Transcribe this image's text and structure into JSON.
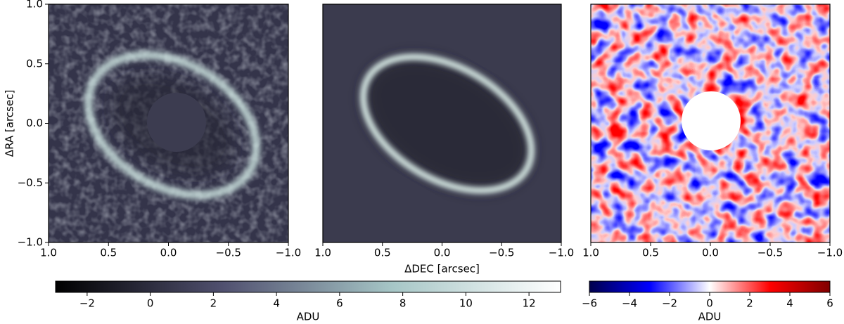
{
  "chart_data": [
    {
      "type": "image",
      "xlim": [
        1,
        -1
      ],
      "ylim": [
        -1,
        1
      ],
      "xticks": [
        {
          "value": 1,
          "label": "1.0"
        },
        0.5,
        {
          "value": 0,
          "label": "0.0"
        },
        {
          "value": -0.5,
          "label": "−0.5"
        },
        {
          "value": -1,
          "label": "−1.0"
        }
      ],
      "yticks": [
        {
          "value": -1,
          "label": "−1.0"
        },
        {
          "value": -0.5,
          "label": "−0.5"
        },
        {
          "value": 0,
          "label": "0.0"
        },
        0.5,
        {
          "value": 1,
          "label": "1.0"
        }
      ],
      "ylabel": "ΔRA [arcsec]",
      "colorbar": {
        "label": "ADU",
        "lim": [
          -3,
          13
        ],
        "ticks": [
          {
            "value": -2,
            "label": "−2"
          },
          0,
          2,
          4,
          6,
          8,
          10,
          12
        ],
        "colors": [
          "#000000",
          "#515170",
          "#a6c6c6",
          "#ffffff"
        ]
      }
    },
    {
      "type": "image",
      "xlim": [
        1,
        -1
      ],
      "ylim": [
        -1,
        1
      ],
      "xticks": [
        {
          "value": 1,
          "label": "1.0"
        },
        0.5,
        {
          "value": 0,
          "label": "0.0"
        },
        {
          "value": -0.5,
          "label": "−0.5"
        },
        {
          "value": -1,
          "label": "−1.0"
        }
      ],
      "xlabel": "ΔDEC [arcsec]"
    },
    {
      "type": "image",
      "xlim": [
        1,
        -1
      ],
      "ylim": [
        -1,
        1
      ],
      "xticks": [
        {
          "value": 1,
          "label": "1.0"
        },
        0.5,
        {
          "value": 0,
          "label": "0.0"
        },
        {
          "value": -0.5,
          "label": "−0.5"
        },
        {
          "value": -1,
          "label": "−1.0"
        }
      ],
      "colorbar": {
        "label": "ADU",
        "lim": [
          -6,
          6
        ],
        "ticks": [
          {
            "value": -6,
            "label": "−6"
          },
          {
            "value": -4,
            "label": "−4"
          },
          {
            "value": -2,
            "label": "−2"
          },
          0,
          2,
          4,
          6
        ],
        "colors": [
          "#00004c",
          "#0000ff",
          "#ffffff",
          "#ff0000",
          "#800000"
        ]
      }
    }
  ]
}
